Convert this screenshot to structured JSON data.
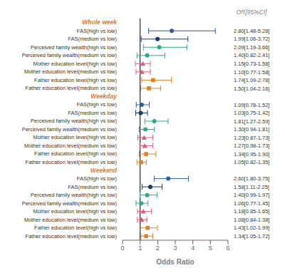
{
  "chart_data": {
    "type": "forest",
    "xlabel": "Odds Ratio",
    "annotation": "OR[95%CI]",
    "xlim": [
      0,
      6
    ],
    "xticks": [
      0,
      1,
      2,
      3,
      4,
      5,
      6
    ],
    "reference_line": 1.0,
    "sections": [
      {
        "label": "Whole week",
        "color": "#e07820",
        "rows": [
          {
            "label": "FAS(high vs low)",
            "value": 2.8,
            "lo": 1.48,
            "hi": 5.28,
            "value_label": "2.80[1.48-5.28]",
            "color": "#2b5fa5",
            "marker": "circle"
          },
          {
            "label": "FAS(medium vs low)",
            "value": 1.99,
            "lo": 1.06,
            "hi": 3.72,
            "value_label": "1.99[1.06-3.72]",
            "color": "#1a3a6b",
            "marker": "circle"
          },
          {
            "label": "Perceived family wealth(high vs low)",
            "value": 2.09,
            "lo": 1.19,
            "hi": 3.66,
            "value_label": "2.09[1.19-3.66]",
            "color": "#2aaa8a",
            "marker": "circle"
          },
          {
            "label": "Perceived family wealth(medium vs low)",
            "value": 1.4,
            "lo": 0.82,
            "hi": 2.41,
            "value_label": "1.40[0.82-2.41]",
            "color": "#2aaa8a",
            "marker": "circle"
          },
          {
            "label": "Mother education level(high vs low)",
            "value": 1.15,
            "lo": 0.73,
            "hi": 1.58,
            "value_label": "1.15[0.73-1.58]",
            "color": "#e05878",
            "marker": "triangle"
          },
          {
            "label": "Mother education level(medium vs low)",
            "value": 1.1,
            "lo": 0.77,
            "hi": 1.58,
            "value_label": "1.10[0.77-1.58]",
            "color": "#e05878",
            "marker": "triangle"
          },
          {
            "label": "Father education level(high vs low)",
            "value": 1.74,
            "lo": 1.09,
            "hi": 2.78,
            "value_label": "1.74[1.09-2.78]",
            "color": "#e08020",
            "marker": "square"
          },
          {
            "label": "Father education level(medium vs low)",
            "value": 1.5,
            "lo": 1.04,
            "hi": 2.16,
            "value_label": "1.50[1.04-2.16]",
            "color": "#e08020",
            "marker": "square"
          }
        ]
      },
      {
        "label": "Weekday",
        "color": "#e07820",
        "rows": [
          {
            "label": "FAS(high vs low)",
            "value": 1.09,
            "lo": 0.78,
            "hi": 1.52,
            "value_label": "1.09[0.78-1.52]",
            "color": "#2b5fa5",
            "marker": "circle"
          },
          {
            "label": "FAS(medium vs low)",
            "value": 1.03,
            "lo": 0.75,
            "hi": 1.42,
            "value_label": "1.03[0.75-1.42]",
            "color": "#1a3a6b",
            "marker": "circle"
          },
          {
            "label": "Perceived family wealth(high vs low)",
            "value": 1.81,
            "lo": 1.27,
            "hi": 2.59,
            "value_label": "1.81[1.27-2.59]",
            "color": "#2aaa8a",
            "marker": "circle"
          },
          {
            "label": "Perceived family wealth(medium vs low)",
            "value": 1.3,
            "lo": 0.94,
            "hi": 1.81,
            "value_label": "1.30[0.94-1.81]",
            "color": "#2aaa8a",
            "marker": "circle"
          },
          {
            "label": "Mother education level(high vs low)",
            "value": 1.23,
            "lo": 0.87,
            "hi": 1.73,
            "value_label": "1.23[0.87-1.73]",
            "color": "#e05878",
            "marker": "triangle"
          },
          {
            "label": "Mother education level(medium vs low)",
            "value": 1.27,
            "lo": 0.98,
            "hi": 1.73,
            "value_label": "1.27[0.98-1.73]",
            "color": "#e05878",
            "marker": "triangle"
          },
          {
            "label": "Father education level(high vs low)",
            "value": 1.34,
            "lo": 0.95,
            "hi": 1.9,
            "value_label": "1.34[0.95-1.90]",
            "color": "#e08020",
            "marker": "square"
          },
          {
            "label": "Father education level(medium vs low)",
            "value": 1.05,
            "lo": 0.82,
            "hi": 1.35,
            "value_label": "1.05[0.82-1.35]",
            "color": "#e08020",
            "marker": "square"
          }
        ]
      },
      {
        "label": "Weekend",
        "color": "#e07820",
        "rows": [
          {
            "label": "FAS(high vs low)",
            "value": 2.6,
            "lo": 1.8,
            "hi": 3.75,
            "value_label": "2.60[1.80-3.75]",
            "color": "#2b5fa5",
            "marker": "circle"
          },
          {
            "label": "FAS(medium vs low)",
            "value": 1.58,
            "lo": 1.11,
            "hi": 2.25,
            "value_label": "1.58[1.11-2.25]",
            "color": "#1a3a6b",
            "marker": "circle"
          },
          {
            "label": "Perceived family wealth(high vs low)",
            "value": 1.4,
            "lo": 0.99,
            "hi": 1.97,
            "value_label": "1.40[0.99-1.97]",
            "color": "#2aaa8a",
            "marker": "circle"
          },
          {
            "label": "Perceived family wealth(medium vs low)",
            "value": 1.06,
            "lo": 0.77,
            "hi": 1.45,
            "value_label": "1.06[0.77-1.45]",
            "color": "#2aaa8a",
            "marker": "circle"
          },
          {
            "label": "Mother education level(high vs low)",
            "value": 1.18,
            "lo": 0.85,
            "hi": 1.65,
            "value_label": "1.18[0.85-1.65]",
            "color": "#e05878",
            "marker": "triangle"
          },
          {
            "label": "Mother education level(medium vs low)",
            "value": 1.08,
            "lo": 0.84,
            "hi": 1.38,
            "value_label": "1.08[0.84-1.38]",
            "color": "#e05878",
            "marker": "triangle"
          },
          {
            "label": "Father education level(high vs low)",
            "value": 1.43,
            "lo": 1.02,
            "hi": 1.99,
            "value_label": "1.43[1.02-1.99]",
            "color": "#e08020",
            "marker": "square"
          },
          {
            "label": "Father education level(medium vs low)",
            "value": 1.34,
            "lo": 1.05,
            "hi": 1.72,
            "value_label": "1.34[1.05-1.72]",
            "color": "#e08020",
            "marker": "square"
          }
        ]
      }
    ]
  }
}
